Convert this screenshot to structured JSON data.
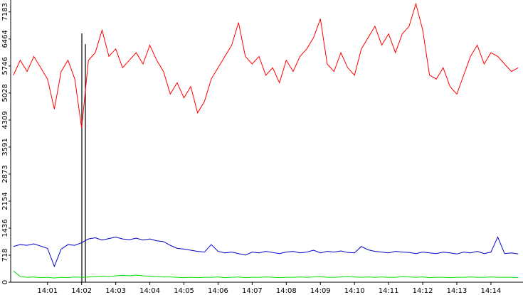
{
  "chart_data": {
    "type": "line",
    "x": [
      0,
      0.2,
      0.4,
      0.6,
      0.8,
      1.0,
      1.2,
      1.4,
      1.6,
      1.8,
      2.0,
      2.2,
      2.4,
      2.6,
      2.8,
      3.0,
      3.2,
      3.4,
      3.6,
      3.8,
      4.0,
      4.2,
      4.4,
      4.6,
      4.8,
      5.0,
      5.2,
      5.4,
      5.6,
      5.8,
      6.0,
      6.2,
      6.4,
      6.6,
      6.8,
      7.0,
      7.2,
      7.4,
      7.6,
      7.8,
      8.0,
      8.2,
      8.4,
      8.6,
      8.8,
      9.0,
      9.2,
      9.4,
      9.6,
      9.8,
      10.0,
      10.2,
      10.4,
      10.6,
      10.8,
      11.0,
      11.2,
      11.4,
      11.6,
      11.8,
      12.0,
      12.2,
      12.4,
      12.6,
      12.8,
      13.0,
      13.2,
      13.4,
      13.6,
      13.8,
      14.0,
      14.2,
      14.4,
      14.6,
      14.8
    ],
    "series": [
      {
        "color": "#ff0000",
        "values": [
          5500,
          5900,
          5600,
          6000,
          5700,
          5400,
          4600,
          5600,
          5900,
          5400,
          4100,
          5900,
          6100,
          6700,
          6000,
          6200,
          5700,
          5900,
          6100,
          5800,
          6300,
          5900,
          5600,
          5000,
          5300,
          4900,
          5200,
          4500,
          4800,
          5400,
          5700,
          6000,
          6300,
          6900,
          6000,
          5800,
          6000,
          5500,
          5700,
          5300,
          5900,
          5600,
          6000,
          6200,
          6500,
          7000,
          5800,
          5600,
          6100,
          5700,
          5500,
          6200,
          6500,
          6800,
          6300,
          6600,
          6100,
          6600,
          6800,
          7400,
          6700,
          5500,
          5400,
          5700,
          5200,
          5000,
          5500,
          6000,
          6300,
          5800,
          6100,
          6000,
          5800,
          5600,
          5700
        ]
      },
      {
        "color": "#0000cc",
        "values": [
          950,
          1000,
          980,
          1020,
          960,
          900,
          420,
          880,
          1000,
          980,
          1050,
          1150,
          1180,
          1120,
          1160,
          1200,
          1150,
          1130,
          1170,
          1120,
          1150,
          1100,
          1080,
          980,
          900,
          880,
          850,
          820,
          800,
          1000,
          820,
          780,
          800,
          760,
          720,
          800,
          780,
          820,
          790,
          760,
          800,
          820,
          780,
          800,
          850,
          780,
          820,
          800,
          830,
          790,
          780,
          950,
          860,
          820,
          800,
          780,
          820,
          800,
          790,
          760,
          800,
          780,
          760,
          800,
          780,
          750,
          800,
          780,
          820,
          760,
          800,
          1200,
          760,
          780,
          750
        ]
      },
      {
        "color": "#00dd00",
        "values": [
          300,
          150,
          130,
          140,
          120,
          130,
          110,
          130,
          120,
          140,
          130,
          140,
          150,
          160,
          150,
          170,
          180,
          170,
          190,
          170,
          160,
          150,
          140,
          140,
          130,
          120,
          130,
          120,
          130,
          130,
          140,
          120,
          130,
          140,
          120,
          130,
          130,
          140,
          130,
          120,
          130,
          130,
          140,
          130,
          140,
          150,
          130,
          130,
          140,
          150,
          140,
          130,
          140,
          130,
          140,
          130,
          130,
          150,
          140,
          130,
          140,
          120,
          130,
          130,
          120,
          130,
          130,
          140,
          130,
          130,
          140,
          130,
          130,
          130,
          120
        ]
      }
    ],
    "xlim": [
      -0.08,
      14.94
    ],
    "xticks": [
      {
        "value": 1,
        "label": "14:01"
      },
      {
        "value": 2,
        "label": "14:02"
      },
      {
        "value": 3,
        "label": "14:03"
      },
      {
        "value": 4,
        "label": "14:04"
      },
      {
        "value": 5,
        "label": "14:05"
      },
      {
        "value": 6,
        "label": "14:06"
      },
      {
        "value": 7,
        "label": "14:07"
      },
      {
        "value": 8,
        "label": "14:08"
      },
      {
        "value": 9,
        "label": "14:09"
      },
      {
        "value": 10,
        "label": "14:10"
      },
      {
        "value": 11,
        "label": "14:11"
      },
      {
        "value": 12,
        "label": "14:12"
      },
      {
        "value": 13,
        "label": "14:13"
      },
      {
        "value": 14,
        "label": "14:14"
      }
    ],
    "ylim": [
      0,
      7500
    ],
    "yticks": [
      0,
      718,
      1436,
      2154,
      2873,
      3591,
      4309,
      5028,
      5746,
      6464,
      7183
    ]
  }
}
